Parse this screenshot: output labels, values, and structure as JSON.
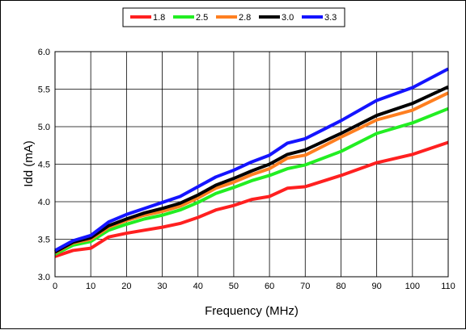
{
  "chart_data": {
    "type": "line",
    "title": "",
    "xlabel": "Frequency (MHz)",
    "ylabel": "Idd (mA)",
    "xlim": [
      0,
      110
    ],
    "ylim": [
      3.0,
      6.0
    ],
    "x_ticks": [
      "0",
      "10",
      "20",
      "30",
      "40",
      "50",
      "60",
      "70",
      "80",
      "90",
      "100",
      "110"
    ],
    "y_ticks": [
      "3.0",
      "3.5",
      "4.0",
      "4.5",
      "5.0",
      "5.5",
      "6.0"
    ],
    "grid": true,
    "legend_position": "top",
    "x": [
      0,
      5,
      10,
      15,
      20,
      25,
      30,
      35,
      40,
      45,
      50,
      55,
      60,
      65,
      70,
      80,
      90,
      100,
      110
    ],
    "series": [
      {
        "name": "1.8",
        "color": "#ff2020",
        "values": [
          3.27,
          3.35,
          3.38,
          3.53,
          3.58,
          3.62,
          3.66,
          3.71,
          3.79,
          3.89,
          3.95,
          4.03,
          4.07,
          4.18,
          4.2,
          4.35,
          4.52,
          4.63,
          4.79
        ]
      },
      {
        "name": "2.5",
        "color": "#22ee22",
        "values": [
          3.3,
          3.42,
          3.47,
          3.62,
          3.7,
          3.77,
          3.82,
          3.89,
          3.99,
          4.11,
          4.19,
          4.28,
          4.35,
          4.44,
          4.49,
          4.67,
          4.91,
          5.05,
          5.24
        ]
      },
      {
        "name": "2.8",
        "color": "#ff7f20",
        "values": [
          3.32,
          3.45,
          3.5,
          3.66,
          3.75,
          3.82,
          3.87,
          3.94,
          4.05,
          4.18,
          4.26,
          4.36,
          4.44,
          4.58,
          4.62,
          4.86,
          5.09,
          5.22,
          5.45
        ]
      },
      {
        "name": "3.0",
        "color": "#000000",
        "values": [
          3.33,
          3.46,
          3.52,
          3.68,
          3.77,
          3.85,
          3.91,
          3.98,
          4.09,
          4.22,
          4.31,
          4.41,
          4.5,
          4.63,
          4.69,
          4.91,
          5.15,
          5.31,
          5.53
        ]
      },
      {
        "name": "3.3",
        "color": "#1414ff",
        "values": [
          3.35,
          3.48,
          3.55,
          3.73,
          3.83,
          3.91,
          3.99,
          4.07,
          4.2,
          4.33,
          4.42,
          4.53,
          4.62,
          4.78,
          4.84,
          5.08,
          5.35,
          5.52,
          5.77
        ]
      }
    ]
  }
}
